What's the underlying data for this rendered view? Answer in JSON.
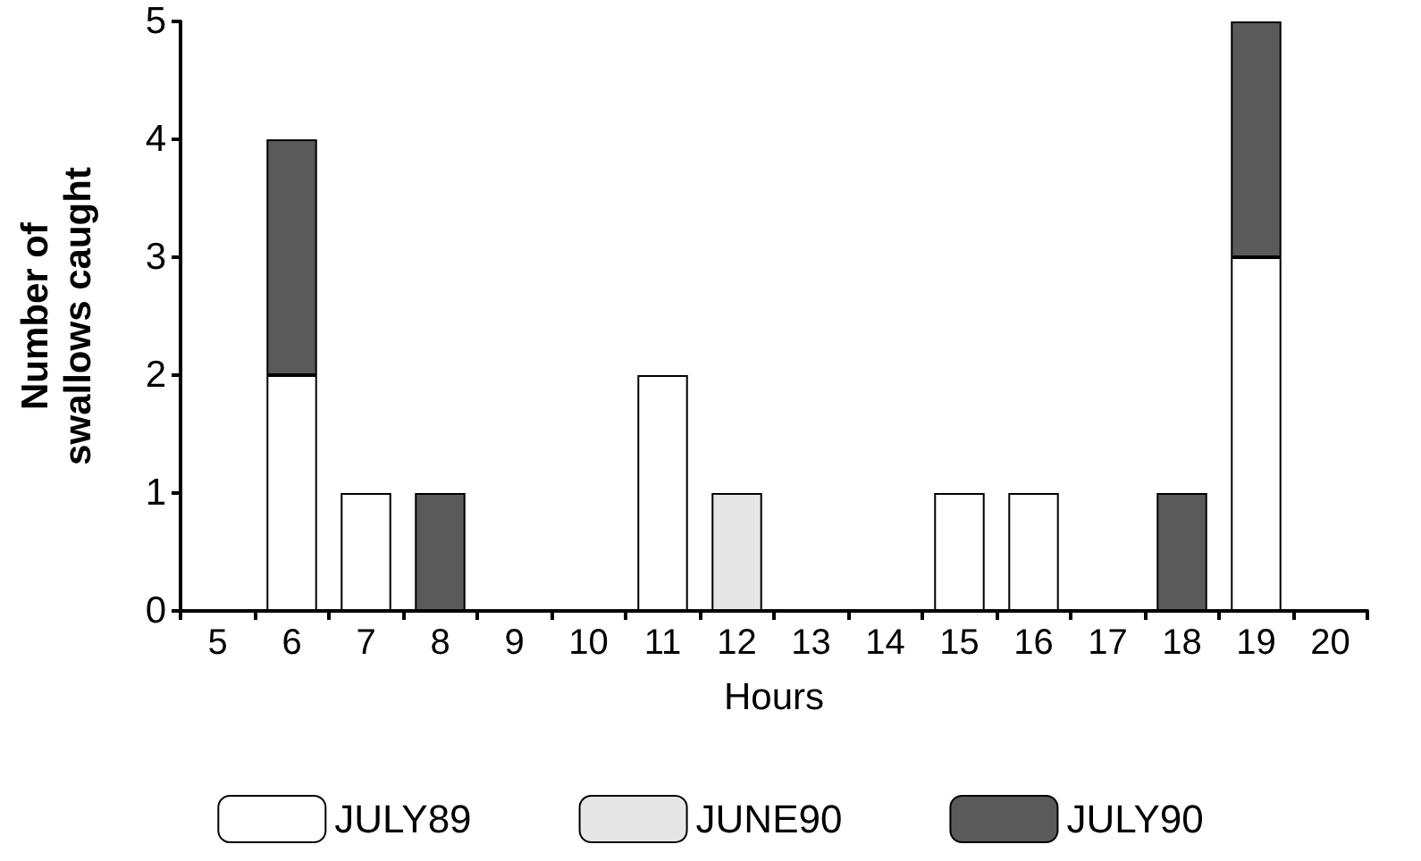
{
  "chart_data": {
    "type": "bar",
    "stacked": true,
    "xlabel": "Hours",
    "ylabel": "Number of\nswallows caught",
    "categories": [
      "5",
      "6",
      "7",
      "8",
      "9",
      "10",
      "11",
      "12",
      "13",
      "14",
      "15",
      "16",
      "17",
      "18",
      "19",
      "20"
    ],
    "series": [
      {
        "name": "JULY89",
        "color": "#ffffff",
        "values": [
          0,
          2,
          1,
          0,
          0,
          0,
          2,
          0,
          0,
          0,
          1,
          1,
          0,
          0,
          3,
          0
        ]
      },
      {
        "name": "JUNE90",
        "color": "#e6e6e6",
        "values": [
          0,
          0,
          0,
          0,
          0,
          0,
          0,
          1,
          0,
          0,
          0,
          0,
          0,
          0,
          0,
          0
        ]
      },
      {
        "name": "JULY90",
        "color": "#5a5a5a",
        "values": [
          0,
          2,
          0,
          1,
          0,
          0,
          0,
          0,
          0,
          0,
          0,
          0,
          0,
          1,
          2,
          0
        ]
      }
    ],
    "ylim": [
      0,
      5
    ],
    "yticks": [
      0,
      1,
      2,
      3,
      4,
      5
    ],
    "grid": false,
    "legend": "bottom"
  }
}
